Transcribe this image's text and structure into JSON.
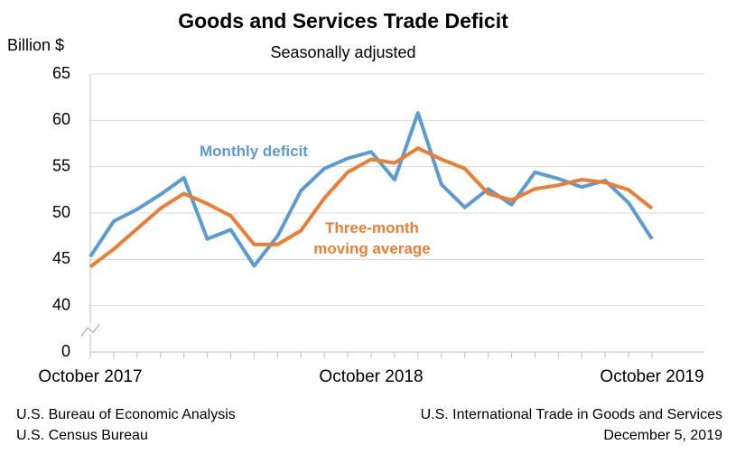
{
  "chart_data": {
    "type": "line",
    "title": "Goods and Services Trade Deficit",
    "subtitle": "Seasonally adjusted",
    "y_label": "Billion $",
    "categories": [
      "October 2017",
      null,
      null,
      null,
      null,
      null,
      null,
      null,
      null,
      null,
      null,
      null,
      "October 2018",
      null,
      null,
      null,
      null,
      null,
      null,
      null,
      null,
      null,
      null,
      null,
      "October 2019"
    ],
    "series": [
      {
        "name": "Monthly deficit",
        "color": "#5b9bd5",
        "values": [
          45.3,
          49.1,
          50.4,
          52.0,
          53.8,
          47.2,
          48.2,
          44.3,
          47.5,
          52.4,
          54.8,
          55.9,
          56.6,
          53.6,
          60.8,
          53.1,
          50.6,
          52.6,
          50.9,
          54.4,
          53.7,
          52.8,
          53.5,
          51.1,
          47.2
        ]
      },
      {
        "name": "Three-month moving average",
        "color": "#ed7d31",
        "values": [
          44.2,
          46.1,
          48.3,
          50.5,
          52.1,
          51.0,
          49.7,
          46.6,
          46.6,
          48.1,
          51.6,
          54.4,
          55.8,
          55.4,
          57.0,
          55.8,
          54.8,
          52.1,
          51.4,
          52.6,
          53.0,
          53.6,
          53.3,
          52.5,
          50.5
        ]
      }
    ],
    "ylim": [
      0,
      65
    ],
    "yticks": [
      0,
      40,
      45,
      50,
      55,
      60,
      65
    ],
    "axis_break": true,
    "grid": true,
    "sources": [
      "U.S. Bureau of Economic Analysis",
      "U.S. Census Bureau"
    ],
    "release": [
      "U.S. International Trade in Goods and Services",
      "December 5, 2019"
    ]
  }
}
